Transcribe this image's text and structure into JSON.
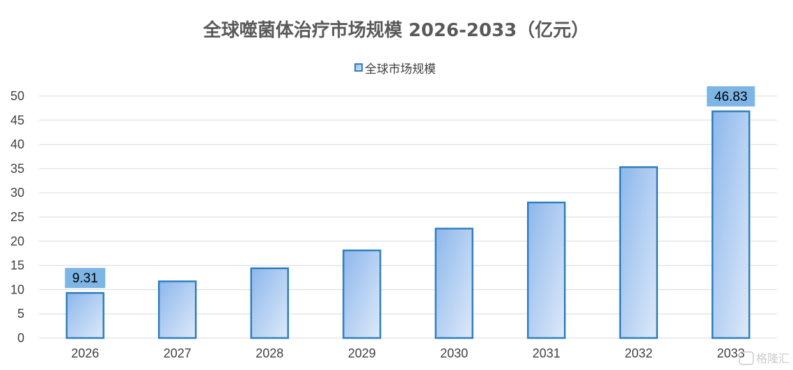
{
  "chart_data": {
    "type": "bar",
    "title": "全球噬菌体治疗市场规模 2026-2033（亿元）",
    "categories": [
      "2026",
      "2027",
      "2028",
      "2029",
      "2030",
      "2031",
      "2032",
      "2033"
    ],
    "series": [
      {
        "name": "全球市场规模",
        "values": [
          9.31,
          11.7,
          14.4,
          18.1,
          22.6,
          28.0,
          35.3,
          46.83
        ]
      }
    ],
    "data_labels": [
      {
        "category": "2026",
        "text": "9.31"
      },
      {
        "category": "2033",
        "text": "46.83"
      }
    ],
    "yticks": [
      "0",
      "5",
      "10",
      "15",
      "20",
      "25",
      "30",
      "35",
      "40",
      "45",
      "50"
    ],
    "ylim": [
      0,
      50
    ],
    "grid": true,
    "legend_position": "top"
  },
  "colors": {
    "bar_fill_start": "#8db7ec",
    "bar_fill_end": "#dde9f9",
    "bar_border": "#2e7ebf",
    "label_box": "#7cb5e6",
    "grid": "#d9d9d9",
    "title": "#595959"
  },
  "watermark": {
    "text": "格隆汇"
  }
}
